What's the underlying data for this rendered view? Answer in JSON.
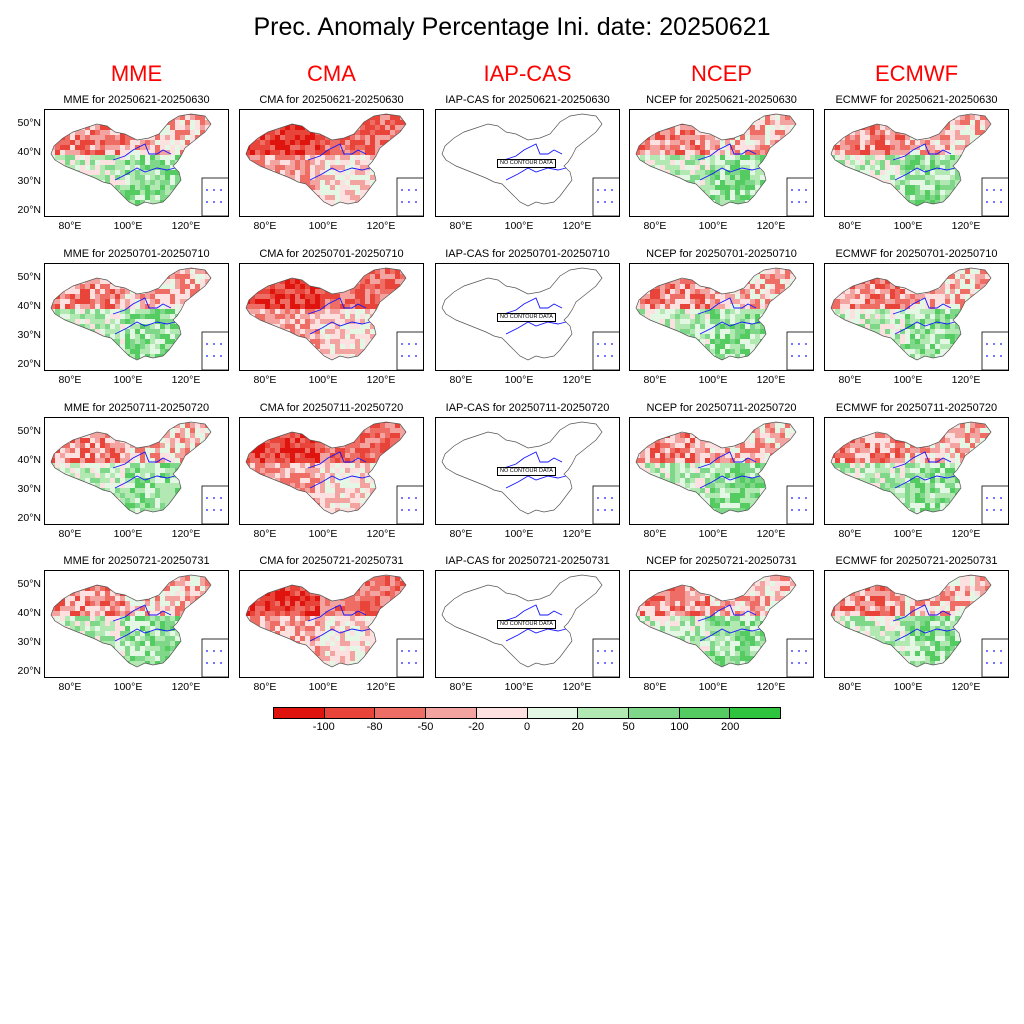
{
  "title": "Prec. Anomaly Percentage Ini. date: 20250621",
  "models": [
    "MME",
    "CMA",
    "IAP-CAS",
    "NCEP",
    "ECMWF"
  ],
  "periods": [
    "20250621-20250630",
    "20250701-20250710",
    "20250711-20250720",
    "20250721-20250731"
  ],
  "panel_titles": [
    [
      "MME for 20250621-20250630",
      "CMA for 20250621-20250630",
      "IAP-CAS for 20250621-20250630",
      "NCEP for 20250621-20250630",
      "ECMWF for 20250621-20250630"
    ],
    [
      "MME for 20250701-20250710",
      "CMA for 20250701-20250710",
      "IAP-CAS for 20250701-20250710",
      "NCEP for 20250701-20250710",
      "ECMWF for 20250701-20250710"
    ],
    [
      "MME for 20250711-20250720",
      "CMA for 20250711-20250720",
      "IAP-CAS for 20250711-20250720",
      "NCEP for 20250711-20250720",
      "ECMWF for 20250711-20250720"
    ],
    [
      "MME for 20250721-20250731",
      "CMA for 20250721-20250731",
      "IAP-CAS for 20250721-20250731",
      "NCEP for 20250721-20250731",
      "ECMWF for 20250721-20250731"
    ]
  ],
  "no_data_text": "NO CONTOUR DATA",
  "lat_ticks": [
    "50°N",
    "40°N",
    "30°N",
    "20°N"
  ],
  "lon_ticks": [
    "80°E",
    "100°E",
    "120°E"
  ],
  "colorbar": {
    "labels": [
      "-100",
      "-80",
      "-50",
      "-20",
      "0",
      "20",
      "50",
      "100",
      "200"
    ],
    "colors": [
      "#e0140f",
      "#e8443a",
      "#ee6e66",
      "#f4a4a0",
      "#fde0e0",
      "#e4f6e4",
      "#b2e8b2",
      "#7fd88a",
      "#55cc62",
      "#2fc43e"
    ]
  }
}
